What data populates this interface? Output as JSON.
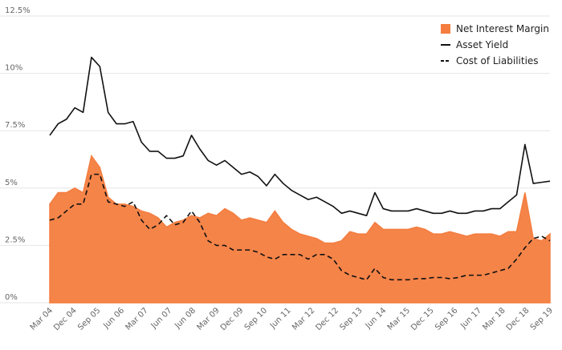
{
  "chart_data": {
    "type": "area",
    "title": "",
    "xlabel": "",
    "ylabel": "",
    "ylim": [
      0,
      12.5
    ],
    "y_ticks": [
      "0%",
      "2.5%",
      "5%",
      "7.5%",
      "10%",
      "12.5%"
    ],
    "x_ticks": [
      "Mar 04",
      "Dec 04",
      "Sep 05",
      "Jun 06",
      "Mar 07",
      "Jun 07",
      "Jun 08",
      "Mar 09",
      "Dec 09",
      "Sep 10",
      "Jun 11",
      "Mar 12",
      "Dec 12",
      "Sep 13",
      "Jun 14",
      "Mar 15",
      "Dec 15",
      "Sep 16",
      "Jun 17",
      "Mar 18",
      "Dec 18",
      "Sep 19"
    ],
    "grid": true,
    "legend_position": "top-right",
    "series": [
      {
        "name": "Net Interest Margin",
        "kind": "area",
        "color": "#f47d3f",
        "values": [
          4.3,
          4.8,
          4.8,
          5.0,
          4.8,
          6.4,
          5.9,
          4.6,
          4.3,
          4.3,
          4.2,
          4.0,
          3.9,
          3.7,
          3.3,
          3.5,
          3.6,
          3.8,
          3.7,
          3.9,
          3.8,
          4.1,
          3.9,
          3.6,
          3.7,
          3.6,
          3.5,
          4.0,
          3.5,
          3.2,
          3.0,
          2.9,
          2.8,
          2.6,
          2.6,
          2.7,
          3.1,
          3.0,
          3.0,
          3.5,
          3.2,
          3.2,
          3.2,
          3.2,
          3.3,
          3.2,
          3.0,
          3.0,
          3.1,
          3.0,
          2.9,
          3.0,
          3.0,
          3.0,
          2.9,
          3.1,
          3.1,
          4.8,
          2.8,
          2.7,
          3.0
        ]
      },
      {
        "name": "Asset Yield",
        "kind": "line",
        "color": "#111111",
        "dash": "solid",
        "values": [
          7.3,
          7.8,
          8.0,
          8.5,
          8.3,
          10.7,
          10.3,
          8.3,
          7.8,
          7.8,
          7.9,
          7.0,
          6.6,
          6.6,
          6.3,
          6.3,
          6.4,
          7.3,
          6.7,
          6.2,
          6.0,
          6.2,
          5.9,
          5.6,
          5.7,
          5.5,
          5.1,
          5.6,
          5.2,
          4.9,
          4.7,
          4.5,
          4.6,
          4.4,
          4.2,
          3.9,
          4.0,
          3.9,
          3.8,
          4.8,
          4.1,
          4.0,
          4.0,
          4.0,
          4.1,
          4.0,
          3.9,
          3.9,
          4.0,
          3.9,
          3.9,
          4.0,
          4.0,
          4.1,
          4.1,
          4.4,
          4.7,
          6.9,
          5.2,
          5.25,
          5.3
        ]
      },
      {
        "name": "Cost of Liabilities",
        "kind": "line",
        "color": "#111111",
        "dash": "dashed",
        "values": [
          3.6,
          3.7,
          4.0,
          4.3,
          4.3,
          5.6,
          5.6,
          4.4,
          4.3,
          4.2,
          4.4,
          3.6,
          3.2,
          3.4,
          3.8,
          3.4,
          3.5,
          4.0,
          3.5,
          2.7,
          2.5,
          2.5,
          2.3,
          2.3,
          2.3,
          2.2,
          2.0,
          1.9,
          2.1,
          2.1,
          2.1,
          1.9,
          2.1,
          2.1,
          1.9,
          1.4,
          1.2,
          1.1,
          1.0,
          1.5,
          1.1,
          1.0,
          1.0,
          1.0,
          1.05,
          1.05,
          1.1,
          1.1,
          1.05,
          1.1,
          1.2,
          1.2,
          1.2,
          1.3,
          1.4,
          1.5,
          1.9,
          2.4,
          2.8,
          2.9,
          2.7
        ]
      }
    ]
  }
}
